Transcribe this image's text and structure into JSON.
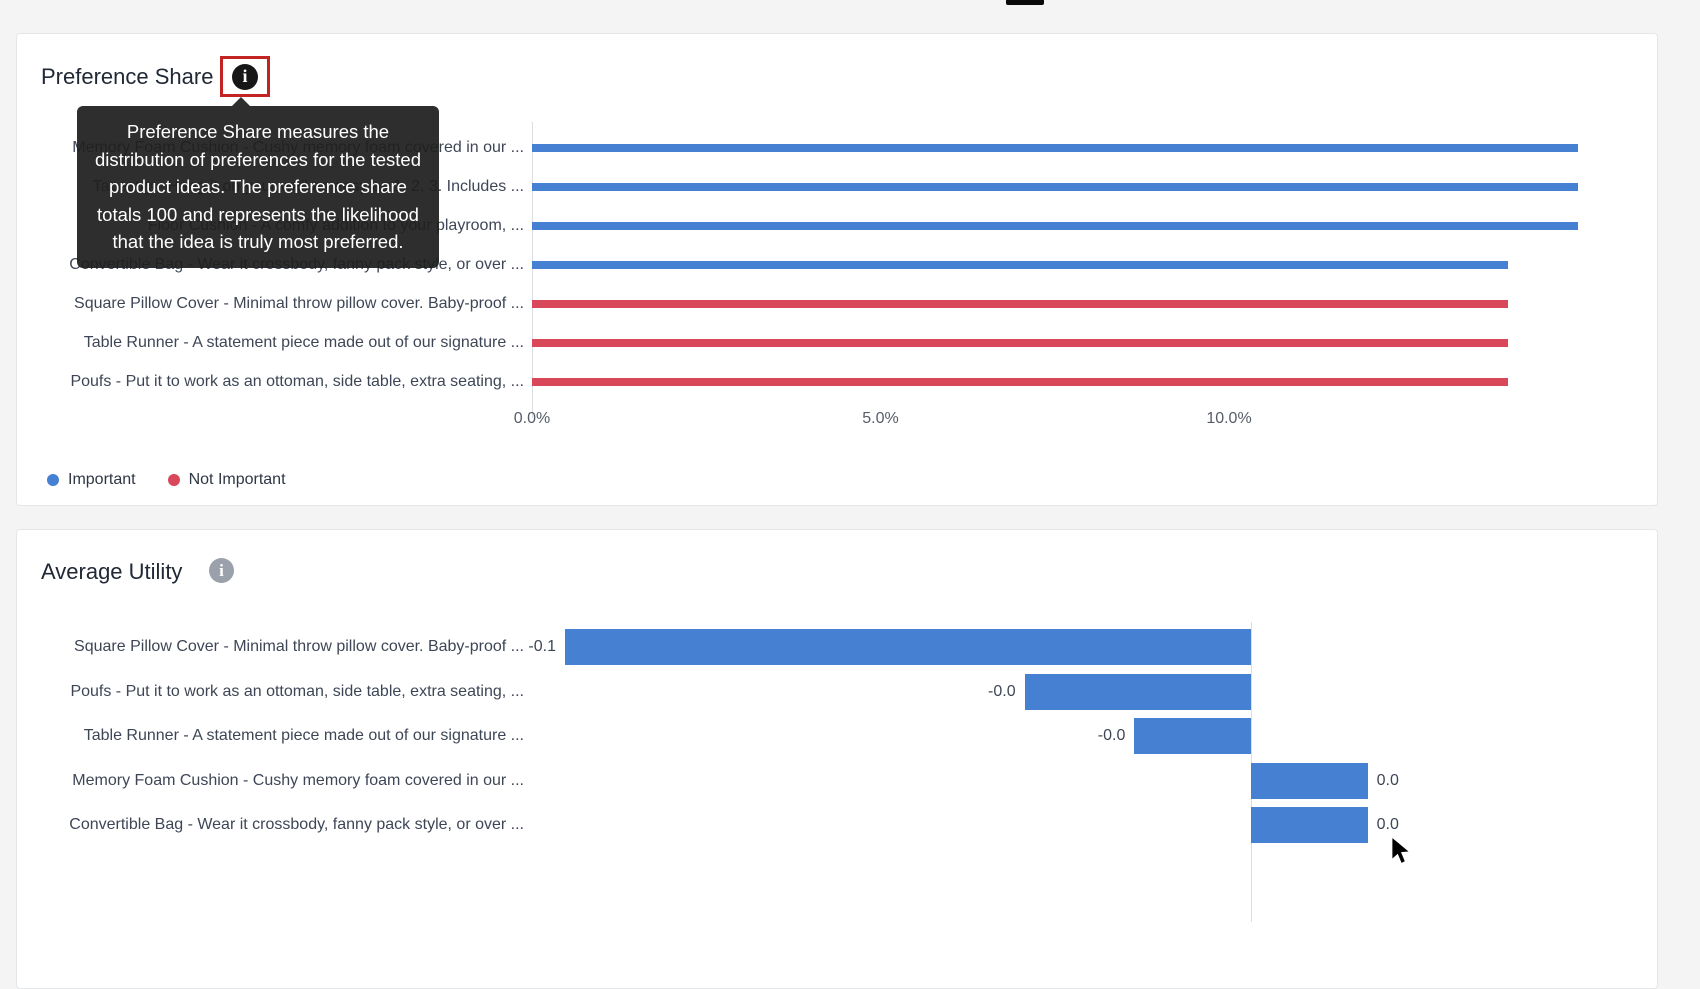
{
  "colors": {
    "important": "#4680d2",
    "not_important": "#d9485a",
    "bar_blue": "#4680d2",
    "highlight_box": "#c42323",
    "tooltip_bg": "#1e1e1e"
  },
  "preference_share": {
    "title": "Preference Share",
    "tooltip": "Preference Share measures the distribution of preferences for the tested product ideas. The preference share totals 100 and represents the likelihood that the idea is truly most preferred."
  },
  "average_utility": {
    "title": "Average Utility"
  },
  "chart_data": [
    {
      "name": "preference_share",
      "type": "bar",
      "orientation": "horizontal",
      "title": "Preference Share",
      "categories": [
        "Memory Foam Cushion - Cushy memory foam covered in our ...",
        "Tapestry - Hang it on your wall as easy as 1, 2, 3. Includes ...",
        "Floor Cushion - A comfy addition to your playroom, ...",
        "Convertible Bag - Wear it crossbody, fanny pack style, or over ...",
        "Square Pillow Cover - Minimal throw pillow cover. Baby-proof ...",
        "Table Runner - A statement piece made out of our signature ...",
        "Poufs - Put it to work as an ottoman, side table, extra seating, ..."
      ],
      "values": [
        15.0,
        15.0,
        15.0,
        14.0,
        14.0,
        14.0,
        14.0
      ],
      "unit": "%",
      "series_of_item": [
        "Important",
        "Important",
        "Important",
        "Important",
        "Not Important",
        "Not Important",
        "Not Important"
      ],
      "x_ticks": [
        {
          "label": "0.0%",
          "value": 0
        },
        {
          "label": "5.0%",
          "value": 5
        },
        {
          "label": "10.0%",
          "value": 10
        }
      ],
      "xlim": [
        0,
        16.3
      ],
      "grid": false,
      "legend_position": "bottom-left",
      "legend": [
        {
          "label": "Important",
          "series": "important"
        },
        {
          "label": "Not Important",
          "series": "not_important"
        }
      ]
    },
    {
      "name": "average_utility",
      "type": "bar",
      "orientation": "horizontal",
      "title": "Average Utility",
      "categories": [
        "Square Pillow Cover - Minimal throw pillow cover. Baby-proof ...",
        "Poufs - Put it to work as an ottoman, side table, extra seating, ...",
        "Table Runner - A statement piece made out of our signature ...",
        "Memory Foam Cushion - Cushy memory foam covered in our ...",
        "Convertible Bag - Wear it crossbody, fanny pack style, or over ..."
      ],
      "values": [
        -0.1,
        -0.033,
        -0.017,
        0.017,
        0.017
      ],
      "value_labels": [
        "-0.1",
        "-0.0",
        "-0.0",
        "0.0",
        "0.0"
      ],
      "baseline": 0,
      "grid": false
    }
  ]
}
